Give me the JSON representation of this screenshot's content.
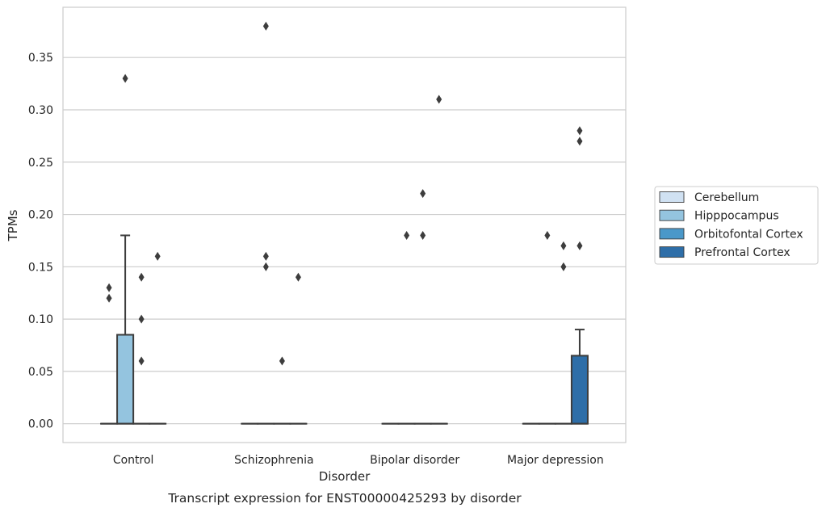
{
  "chart_data": {
    "type": "box",
    "caption": "Transcript expression for ENST00000425293 by disorder",
    "xlabel": "Disorder",
    "ylabel": "TPMs",
    "ylim": [
      -0.018,
      0.398
    ],
    "yticks": [
      "0.00",
      "0.05",
      "0.10",
      "0.15",
      "0.20",
      "0.25",
      "0.30",
      "0.35"
    ],
    "categories": [
      "Control",
      "Schizophrenia",
      "Bipolar disorder",
      "Major depression"
    ],
    "grid": true,
    "legend_position": "right-center",
    "series": [
      {
        "name": "Cerebellum",
        "color": "#d0e1f2",
        "boxes": [
          {
            "q1": 0,
            "median": 0,
            "q3": 0,
            "whisker_low": 0,
            "whisker_high": 0,
            "outliers": [
              0.13,
              0.12
            ]
          },
          {
            "q1": 0,
            "median": 0,
            "q3": 0,
            "whisker_low": 0,
            "whisker_high": 0,
            "outliers": []
          },
          {
            "q1": 0,
            "median": 0,
            "q3": 0,
            "whisker_low": 0,
            "whisker_high": 0,
            "outliers": []
          },
          {
            "q1": 0,
            "median": 0,
            "q3": 0,
            "whisker_low": 0,
            "whisker_high": 0,
            "outliers": []
          }
        ]
      },
      {
        "name": "Hipppocampus",
        "color": "#94c4df",
        "boxes": [
          {
            "q1": 0,
            "median": 0,
            "q3": 0.085,
            "whisker_low": 0,
            "whisker_high": 0.18,
            "outliers": [
              0.33
            ]
          },
          {
            "q1": 0,
            "median": 0,
            "q3": 0,
            "whisker_low": 0,
            "whisker_high": 0,
            "outliers": [
              0.38,
              0.16,
              0.15
            ]
          },
          {
            "q1": 0,
            "median": 0,
            "q3": 0,
            "whisker_low": 0,
            "whisker_high": 0,
            "outliers": [
              0.18
            ]
          },
          {
            "q1": 0,
            "median": 0,
            "q3": 0,
            "whisker_low": 0,
            "whisker_high": 0,
            "outliers": [
              0.18
            ]
          }
        ]
      },
      {
        "name": "Orbitofontal Cortex",
        "color": "#4a98c9",
        "boxes": [
          {
            "q1": 0,
            "median": 0,
            "q3": 0,
            "whisker_low": 0,
            "whisker_high": 0,
            "outliers": [
              0.14,
              0.1,
              0.06
            ]
          },
          {
            "q1": 0,
            "median": 0,
            "q3": 0,
            "whisker_low": 0,
            "whisker_high": 0,
            "outliers": [
              0.06
            ]
          },
          {
            "q1": 0,
            "median": 0,
            "q3": 0,
            "whisker_low": 0,
            "whisker_high": 0,
            "outliers": [
              0.22,
              0.18
            ]
          },
          {
            "q1": 0,
            "median": 0,
            "q3": 0,
            "whisker_low": 0,
            "whisker_high": 0,
            "outliers": [
              0.17,
              0.15
            ]
          }
        ]
      },
      {
        "name": "Prefrontal Cortex",
        "color": "#2e6ea8",
        "boxes": [
          {
            "q1": 0,
            "median": 0,
            "q3": 0,
            "whisker_low": 0,
            "whisker_high": 0,
            "outliers": [
              0.16
            ]
          },
          {
            "q1": 0,
            "median": 0,
            "q3": 0,
            "whisker_low": 0,
            "whisker_high": 0,
            "outliers": [
              0.14
            ]
          },
          {
            "q1": 0,
            "median": 0,
            "q3": 0,
            "whisker_low": 0,
            "whisker_high": 0,
            "outliers": [
              0.31
            ]
          },
          {
            "q1": 0,
            "median": 0,
            "q3": 0.065,
            "whisker_low": 0,
            "whisker_high": 0.09,
            "outliers": [
              0.28,
              0.27,
              0.17
            ]
          }
        ]
      }
    ]
  }
}
